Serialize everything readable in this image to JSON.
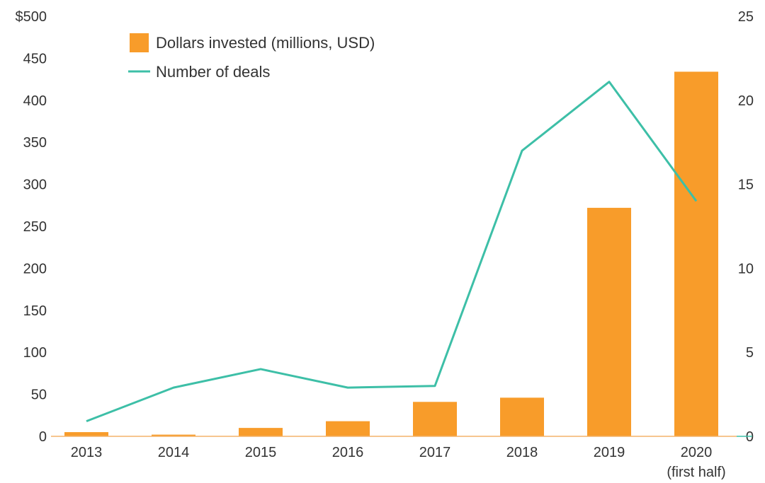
{
  "chart_data": {
    "type": "bar",
    "categories": [
      "2013",
      "2014",
      "2015",
      "2016",
      "2017",
      "2018",
      "2019",
      [
        "2020",
        "(first half)"
      ]
    ],
    "series": [
      {
        "name": "Dollars invested (millions, USD)",
        "type": "bar",
        "axis": "left",
        "color": "#F89C2A",
        "values": [
          5,
          2,
          10,
          18,
          41,
          46,
          272,
          434
        ]
      },
      {
        "name": "Number of deals",
        "type": "line",
        "axis": "right",
        "color": "#3DBFA7",
        "values": [
          0.9,
          2.9,
          4.0,
          2.9,
          3.0,
          17.0,
          21.1,
          14.0
        ]
      }
    ],
    "y_left": {
      "ylim": [
        0,
        500
      ],
      "ticks": [
        0,
        50,
        100,
        150,
        200,
        250,
        300,
        350,
        400,
        450,
        500
      ],
      "tick_labels": [
        "0",
        "50",
        "100",
        "150",
        "200",
        "250",
        "300",
        "350",
        "400",
        "450",
        "$500"
      ]
    },
    "y_right": {
      "ylim": [
        0,
        25
      ],
      "ticks": [
        0,
        5,
        10,
        15,
        20,
        25
      ],
      "tick_labels": [
        "0",
        "5",
        "10",
        "15",
        "20",
        "25"
      ]
    },
    "legend": {
      "position": "top-left"
    },
    "grid": false
  }
}
